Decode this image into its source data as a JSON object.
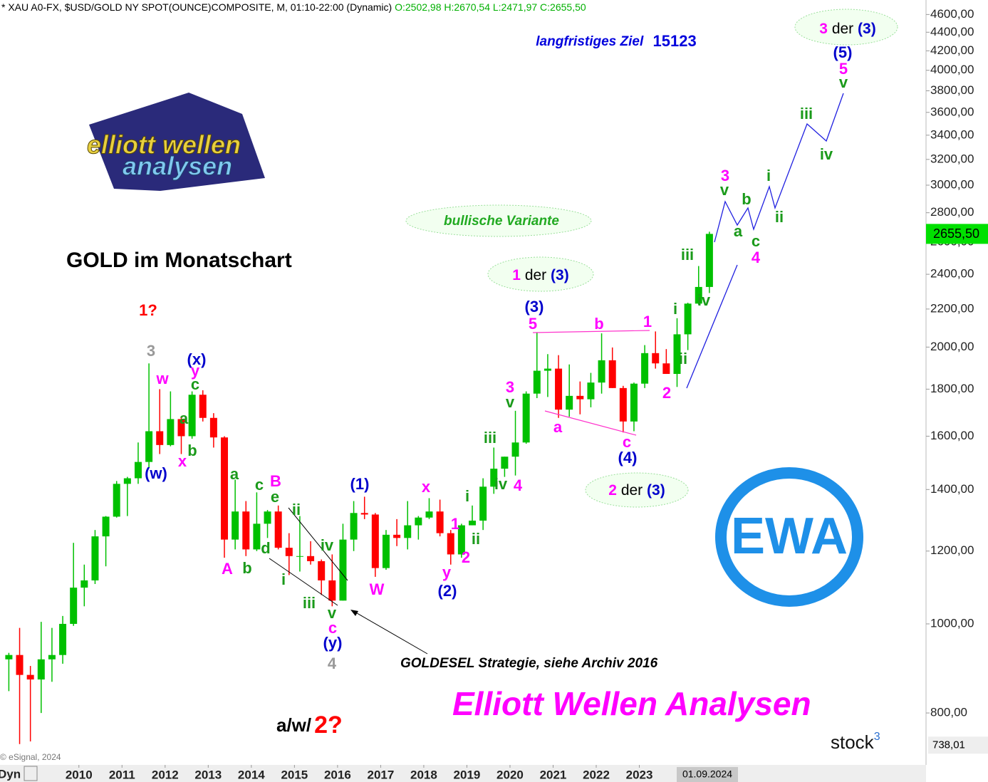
{
  "chart_data": {
    "type": "candlestick",
    "header": "* XAU A0-FX, $USD/GOLD NY SPOT(OUNCE)COMPOSITE, M, 01:10-22:00 (Dynamic)",
    "header_ohlc": "O:2502,98 H:2670,54 L:2471,97 C:2655,50",
    "title": "GOLD im Monatschart",
    "target_text": "langfristiges Ziel",
    "target_value": "15123",
    "strategy_note": "GOLDESEL Strategie, siehe Archiv 2016",
    "brand": "Elliott Wellen Analysen",
    "copyright": "© eSignal, 2024",
    "source": {
      "name": "stock",
      "sup": "3"
    },
    "dyn_label": "Dyn",
    "date_label": "01.09.2024",
    "logo": {
      "line1": "elliott wellen",
      "line2": "analysen",
      "badge": "EWA"
    },
    "last_price": {
      "value": 2655.5,
      "label": "2655,50"
    },
    "low_marker": {
      "value": 738.01,
      "label": "738,01"
    },
    "bottom_note": {
      "prefix": "a/w/",
      "mark": "2?"
    },
    "bubbles": [
      {
        "parts": [
          "bullische Variante"
        ]
      },
      {
        "parts": [
          "1",
          "der",
          "(3)"
        ]
      },
      {
        "parts": [
          "2",
          "der",
          "(3)"
        ]
      },
      {
        "parts": [
          "3",
          "der",
          "(3)"
        ]
      }
    ],
    "wave_labels": [
      "1?",
      "3",
      "(x)",
      "w",
      "y",
      "c",
      "a",
      "b",
      "x",
      "(w)",
      "a",
      "c",
      "B",
      "e",
      "ii",
      "d",
      "A",
      "b",
      "i",
      "iv",
      "iii",
      "v",
      "c",
      "(y)",
      "4",
      "(1)",
      "x",
      "W",
      "y",
      "(2)",
      "1",
      "2",
      "i",
      "ii",
      "iii",
      "iv",
      "4",
      "3",
      "v",
      "(3)",
      "5",
      "b",
      "1",
      "a",
      "c",
      "(4)",
      "2",
      "i",
      "ii",
      "iii",
      "iv",
      "3",
      "v",
      "b",
      "a",
      "i",
      "ii",
      "c",
      "4",
      "iii",
      "iv",
      "v",
      "5",
      "(5)"
    ],
    "up_color": "#00c000",
    "down_color": "#ff0000",
    "log_scale": true,
    "xlim": [
      2008.17,
      2029.65
    ],
    "xticks": [
      2010,
      2011,
      2012,
      2013,
      2014,
      2015,
      2016,
      2017,
      2018,
      2019,
      2020,
      2021,
      2022,
      2023
    ],
    "ylim": [
      710,
      4770
    ],
    "yticks": [
      {
        "value": 800,
        "label": "800,00"
      },
      {
        "value": 1000,
        "label": "1000,00"
      },
      {
        "value": 1200,
        "label": "1200,00"
      },
      {
        "value": 1400,
        "label": "1400,00"
      },
      {
        "value": 1600,
        "label": "1600,00"
      },
      {
        "value": 1800,
        "label": "1800,00"
      },
      {
        "value": 2000,
        "label": "2000,00"
      },
      {
        "value": 2200,
        "label": "2200,00"
      },
      {
        "value": 2400,
        "label": "2400,00"
      },
      {
        "value": 2600,
        "label": "2600,00"
      },
      {
        "value": 2800,
        "label": "2800,00"
      },
      {
        "value": 3000,
        "label": "3000,00"
      },
      {
        "value": 3200,
        "label": "3200,00"
      },
      {
        "value": 3400,
        "label": "3400,00"
      },
      {
        "value": 3600,
        "label": "3600,00"
      },
      {
        "value": 3800,
        "label": "3800,00"
      },
      {
        "value": 4000,
        "label": "4000,00"
      },
      {
        "value": 4200,
        "label": "4200,00"
      },
      {
        "value": 4400,
        "label": "4400,00"
      },
      {
        "value": 4600,
        "label": "4600,00"
      }
    ],
    "x": [
      2008.375,
      2008.625,
      2008.875,
      2009.125,
      2009.375,
      2009.625,
      2009.875,
      2010.125,
      2010.375,
      2010.625,
      2010.875,
      2011.125,
      2011.375,
      2011.625,
      2011.875,
      2012.125,
      2012.375,
      2012.625,
      2012.875,
      2013.125,
      2013.375,
      2013.625,
      2013.875,
      2014.125,
      2014.375,
      2014.625,
      2014.875,
      2015.125,
      2015.375,
      2015.625,
      2015.875,
      2016.125,
      2016.375,
      2016.625,
      2016.875,
      2017.125,
      2017.375,
      2017.625,
      2017.875,
      2018.125,
      2018.375,
      2018.625,
      2018.875,
      2019.125,
      2019.375,
      2019.625,
      2019.875,
      2020.125,
      2020.375,
      2020.625,
      2020.875,
      2021.125,
      2021.375,
      2021.625,
      2021.875,
      2022.125,
      2022.375,
      2022.625,
      2022.875,
      2023.125,
      2023.375,
      2023.625,
      2023.875,
      2024.125,
      2024.375,
      2024.625
    ],
    "open": [
      915,
      925,
      880,
      870,
      915,
      925,
      1000,
      1095,
      1115,
      1245,
      1308,
      1420,
      1440,
      1500,
      1620,
      1565,
      1670,
      1600,
      1775,
      1675,
      1595,
      1235,
      1325,
      1205,
      1285,
      1325,
      1210,
      1185,
      1185,
      1170,
      1115,
      1060,
      1235,
      1320,
      1315,
      1150,
      1250,
      1240,
      1280,
      1305,
      1325,
      1255,
      1190,
      1280,
      1295,
      1410,
      1475,
      1520,
      1575,
      1780,
      1885,
      1895,
      1710,
      1770,
      1755,
      1830,
      1935,
      1805,
      1660,
      1825,
      1970,
      1920,
      1870,
      2065,
      2230,
      2325
    ],
    "high": [
      930,
      990,
      900,
      1005,
      990,
      1020,
      1225,
      1160,
      1265,
      1310,
      1430,
      1445,
      1575,
      1920,
      1800,
      1790,
      1680,
      1790,
      1795,
      1695,
      1600,
      1435,
      1360,
      1390,
      1330,
      1345,
      1255,
      1310,
      1230,
      1175,
      1190,
      1285,
      1360,
      1375,
      1320,
      1265,
      1300,
      1360,
      1310,
      1370,
      1365,
      1265,
      1285,
      1345,
      1440,
      1555,
      1520,
      1705,
      1790,
      2075,
      1965,
      1960,
      1915,
      1835,
      1875,
      2070,
      1998,
      1815,
      1830,
      2010,
      2080,
      1990,
      2150,
      2235,
      2450,
      2670
    ],
    "low": [
      845,
      740,
      745,
      800,
      865,
      905,
      995,
      1045,
      1105,
      1155,
      1305,
      1310,
      1420,
      1480,
      1530,
      1560,
      1530,
      1590,
      1660,
      1555,
      1180,
      1205,
      1185,
      1200,
      1240,
      1205,
      1130,
      1140,
      1160,
      1075,
      1045,
      1060,
      1200,
      1300,
      1125,
      1145,
      1215,
      1205,
      1235,
      1300,
      1245,
      1160,
      1180,
      1280,
      1265,
      1385,
      1445,
      1450,
      1570,
      1760,
      1765,
      1675,
      1680,
      1690,
      1720,
      1780,
      1805,
      1615,
      1620,
      1805,
      1895,
      1870,
      1810,
      1985,
      2225,
      2290
    ],
    "close": [
      925,
      880,
      870,
      915,
      925,
      1000,
      1095,
      1115,
      1245,
      1308,
      1420,
      1440,
      1500,
      1620,
      1565,
      1670,
      1600,
      1775,
      1675,
      1595,
      1235,
      1325,
      1205,
      1285,
      1325,
      1210,
      1185,
      1185,
      1170,
      1115,
      1060,
      1235,
      1320,
      1315,
      1150,
      1250,
      1240,
      1280,
      1305,
      1325,
      1255,
      1190,
      1280,
      1295,
      1410,
      1475,
      1520,
      1575,
      1780,
      1885,
      1895,
      1710,
      1770,
      1755,
      1830,
      1935,
      1805,
      1660,
      1825,
      1970,
      1920,
      1870,
      2065,
      2230,
      2325,
      2655.5
    ]
  }
}
